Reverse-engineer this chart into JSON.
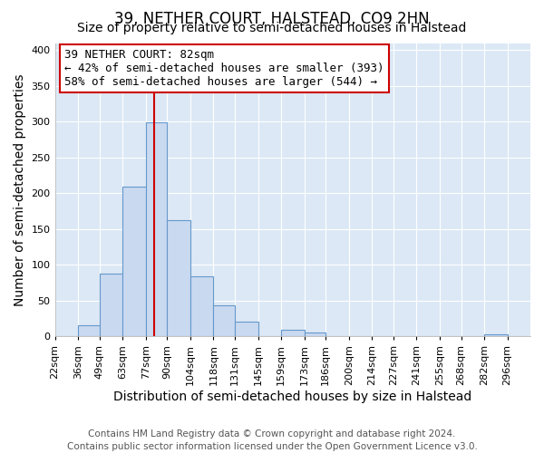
{
  "title": "39, NETHER COURT, HALSTEAD, CO9 2HN",
  "subtitle": "Size of property relative to semi-detached houses in Halstead",
  "xlabel": "Distribution of semi-detached houses by size in Halstead",
  "ylabel": "Number of semi-detached properties",
  "footer_line1": "Contains HM Land Registry data © Crown copyright and database right 2024.",
  "footer_line2": "Contains public sector information licensed under the Open Government Licence v3.0.",
  "bin_labels": [
    "22sqm",
    "36sqm",
    "49sqm",
    "63sqm",
    "77sqm",
    "90sqm",
    "104sqm",
    "118sqm",
    "131sqm",
    "145sqm",
    "159sqm",
    "173sqm",
    "186sqm",
    "200sqm",
    "214sqm",
    "227sqm",
    "241sqm",
    "255sqm",
    "268sqm",
    "282sqm",
    "296sqm"
  ],
  "bin_edges": [
    22,
    36,
    49,
    63,
    77,
    90,
    104,
    118,
    131,
    145,
    159,
    173,
    186,
    200,
    214,
    227,
    241,
    255,
    268,
    282,
    296,
    310
  ],
  "bar_heights": [
    0,
    15,
    88,
    209,
    299,
    163,
    84,
    44,
    21,
    0,
    9,
    5,
    0,
    0,
    0,
    0,
    0,
    0,
    0,
    3,
    0
  ],
  "bar_color": "#c9d9f0",
  "bar_edge_color": "#6699cc",
  "property_size": 82,
  "vline_color": "#cc0000",
  "annotation_title": "39 NETHER COURT: 82sqm",
  "annotation_line1": "← 42% of semi-detached houses are smaller (393)",
  "annotation_line2": "58% of semi-detached houses are larger (544) →",
  "annotation_box_edge_color": "#cc0000",
  "ylim": [
    0,
    410
  ],
  "yticks": [
    0,
    50,
    100,
    150,
    200,
    250,
    300,
    350,
    400
  ],
  "background_color": "#ffffff",
  "plot_background_color": "#dce8f5",
  "grid_color": "#ffffff",
  "title_fontsize": 12,
  "subtitle_fontsize": 10,
  "axis_label_fontsize": 10,
  "tick_fontsize": 8,
  "footer_fontsize": 7.5,
  "annotation_fontsize": 9
}
